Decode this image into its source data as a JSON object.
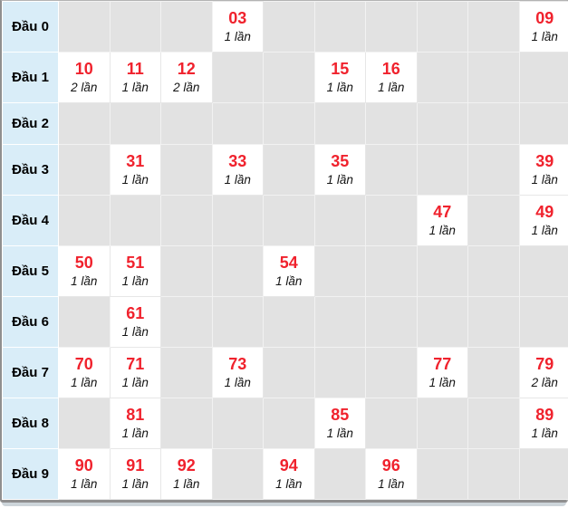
{
  "chart_data": {
    "type": "table",
    "title": "",
    "row_labels": [
      "Đầu 0",
      "Đầu 1",
      "Đầu 2",
      "Đầu 3",
      "Đầu 4",
      "Đầu 5",
      "Đầu 6",
      "Đầu 7",
      "Đầu 8",
      "Đầu 9"
    ],
    "num_columns": 10,
    "rows": [
      [
        {
          "col": 3,
          "number": "03",
          "count": "1 lần"
        },
        {
          "col": 9,
          "number": "09",
          "count": "1 lần"
        }
      ],
      [
        {
          "col": 0,
          "number": "10",
          "count": "2 lần"
        },
        {
          "col": 1,
          "number": "11",
          "count": "1 lần"
        },
        {
          "col": 2,
          "number": "12",
          "count": "2 lần"
        },
        {
          "col": 5,
          "number": "15",
          "count": "1 lần"
        },
        {
          "col": 6,
          "number": "16",
          "count": "1 lần"
        }
      ],
      [],
      [
        {
          "col": 1,
          "number": "31",
          "count": "1 lần"
        },
        {
          "col": 3,
          "number": "33",
          "count": "1 lần"
        },
        {
          "col": 5,
          "number": "35",
          "count": "1 lần"
        },
        {
          "col": 9,
          "number": "39",
          "count": "1 lần"
        }
      ],
      [
        {
          "col": 7,
          "number": "47",
          "count": "1 lần"
        },
        {
          "col": 9,
          "number": "49",
          "count": "1 lần"
        }
      ],
      [
        {
          "col": 0,
          "number": "50",
          "count": "1 lần"
        },
        {
          "col": 1,
          "number": "51",
          "count": "1 lần"
        },
        {
          "col": 4,
          "number": "54",
          "count": "1 lần"
        }
      ],
      [
        {
          "col": 1,
          "number": "61",
          "count": "1 lần"
        }
      ],
      [
        {
          "col": 0,
          "number": "70",
          "count": "1 lần"
        },
        {
          "col": 1,
          "number": "71",
          "count": "1 lần"
        },
        {
          "col": 3,
          "number": "73",
          "count": "1 lần"
        },
        {
          "col": 7,
          "number": "77",
          "count": "1 lần"
        },
        {
          "col": 9,
          "number": "79",
          "count": "2 lần"
        }
      ],
      [
        {
          "col": 1,
          "number": "81",
          "count": "1 lần"
        },
        {
          "col": 5,
          "number": "85",
          "count": "1 lần"
        },
        {
          "col": 9,
          "number": "89",
          "count": "1 lần"
        }
      ],
      [
        {
          "col": 0,
          "number": "90",
          "count": "1 lần"
        },
        {
          "col": 1,
          "number": "91",
          "count": "1 lần"
        },
        {
          "col": 2,
          "number": "92",
          "count": "1 lần"
        },
        {
          "col": 4,
          "number": "94",
          "count": "1 lần"
        },
        {
          "col": 6,
          "number": "96",
          "count": "1 lần"
        }
      ]
    ]
  },
  "colors": {
    "accent_red": "#f0222d",
    "row_label_bg": "#d9edf8",
    "empty_cell_bg": "#e2e2e2",
    "hit_cell_bg": "#ffffff",
    "frame_border": "#8f8f8f"
  }
}
